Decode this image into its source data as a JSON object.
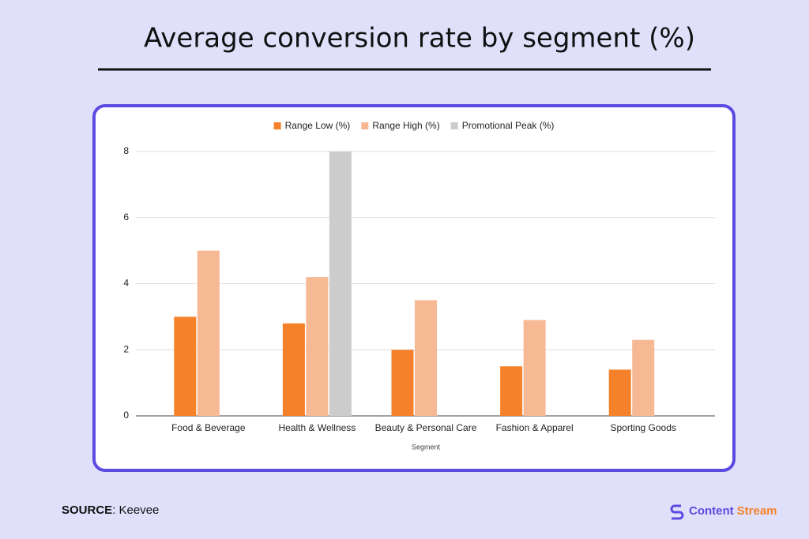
{
  "chart_data": {
    "type": "bar",
    "title": "Average conversion rate by segment (%)",
    "x_label": "Segment",
    "categories": [
      "Food & Beverage",
      "Health & Wellness",
      "Beauty & Personal Care",
      "Fashion & Apparel",
      "Sporting Goods"
    ],
    "series": [
      {
        "name": "Range Low (%)",
        "color": "#f5822a",
        "values": [
          3,
          2.8,
          2,
          1.5,
          1.4
        ]
      },
      {
        "name": "Range High (%)",
        "color": "#f7b894",
        "values": [
          5,
          4.2,
          3.5,
          2.9,
          2.3
        ]
      },
      {
        "name": "Promotional Peak (%)",
        "color": "#cccccc",
        "values": [
          null,
          8,
          null,
          null,
          null
        ]
      }
    ],
    "ylim": [
      0,
      8
    ],
    "yticks": [
      0,
      2,
      4,
      6,
      8
    ],
    "grid": true,
    "legend": "top"
  },
  "footer": {
    "source_label": "SOURCE",
    "source_text": ": Keevee",
    "brand_first": "Content",
    "brand_second": "Stream"
  }
}
